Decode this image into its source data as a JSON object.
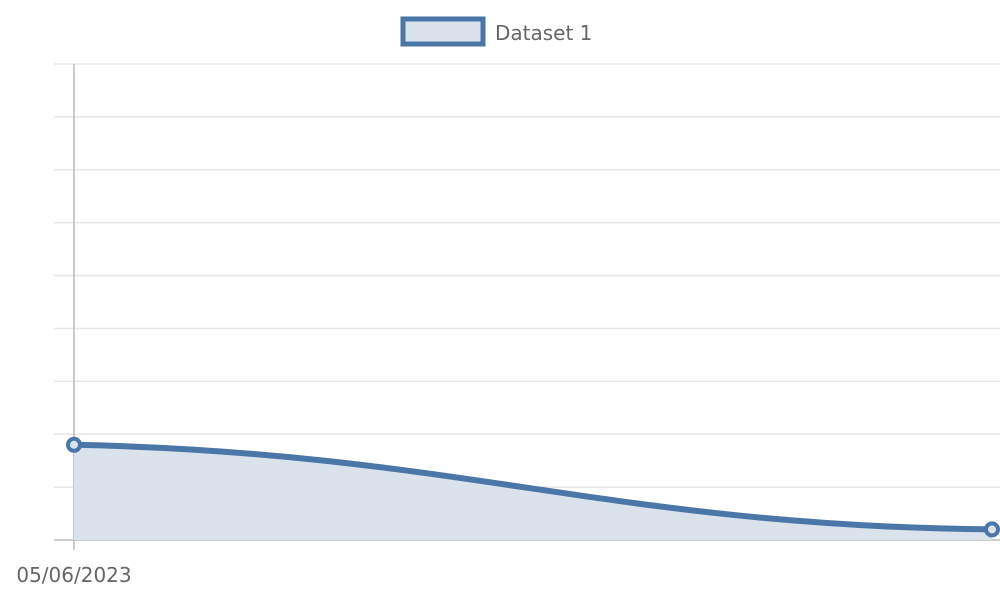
{
  "chart_data": {
    "type": "area",
    "x": [
      "05/06/2023",
      ""
    ],
    "series": [
      {
        "name": "Dataset 1",
        "values": [
          1.8,
          0.2
        ]
      }
    ],
    "ylim": [
      0,
      9
    ],
    "grid": true,
    "legend": "top-center",
    "colors": {
      "line": "#4a76a8",
      "fill": "#dae2ec",
      "grid": "#e6e6e6",
      "axis": "#bbbbbb",
      "text": "#666666"
    }
  }
}
